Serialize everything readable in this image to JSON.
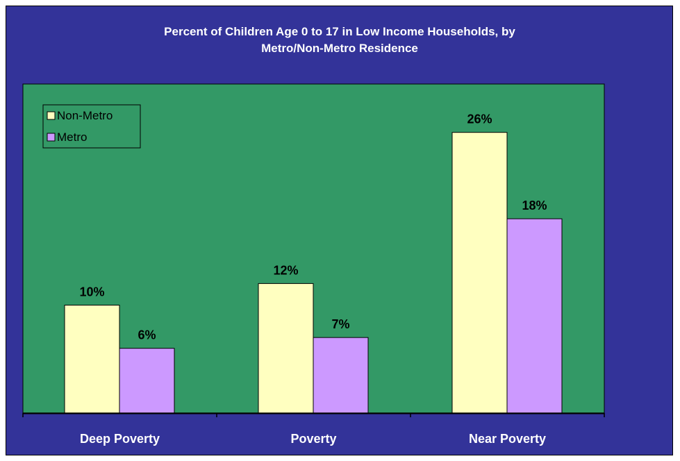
{
  "chart_data": {
    "type": "bar",
    "title_lines": [
      "Percent of Children Age 0 to 17 in Low Income Households, by",
      "Metro/Non-Metro Residence"
    ],
    "categories": [
      "Deep Poverty",
      "Poverty",
      "Near Poverty"
    ],
    "series": [
      {
        "name": "Non-Metro",
        "values": [
          10,
          12,
          26
        ],
        "labels": [
          "10%",
          "12%",
          "26%"
        ],
        "color": "#FFFFC0"
      },
      {
        "name": "Metro",
        "values": [
          6,
          7,
          18
        ],
        "labels": [
          "6%",
          "7%",
          "18%"
        ],
        "color": "#CC99FF"
      }
    ],
    "ylim": [
      0,
      32
    ],
    "grid": false,
    "legend_position": "top-left",
    "colors": {
      "frame_background": "#333399",
      "plot_background": "#339966",
      "text": "#FFFFFF"
    }
  }
}
